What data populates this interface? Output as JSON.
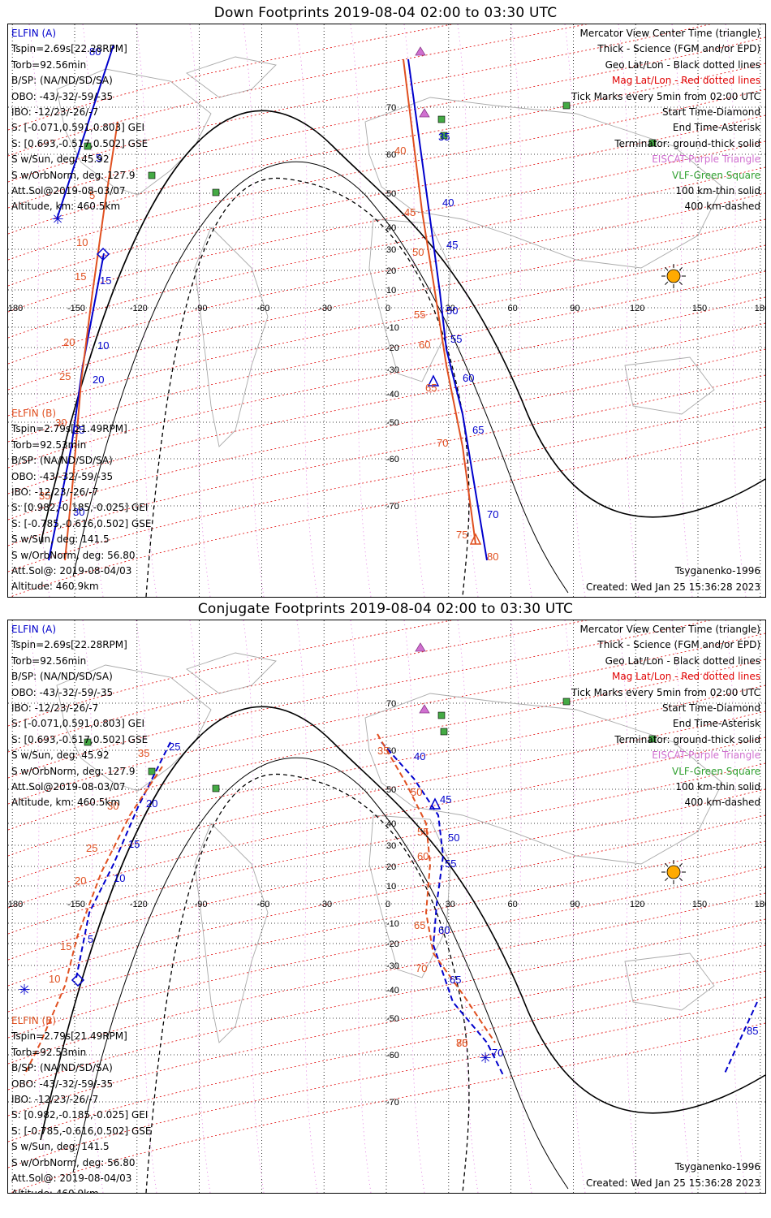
{
  "panels": [
    {
      "id": "down",
      "title": "Down Footprints 2019-08-04 02:00 to 03:30 UTC",
      "elfin_a": {
        "label": "ELFIN (A)",
        "lines": [
          "Tspin=2.69s[22.28RPM]",
          "Torb=92.56min",
          "B/SP: (NA/ND/SD/SA)",
          "OBO: -43/-32/-59/-35",
          "IBO: -12/23/-26/-7",
          "S: [-0.071,0.591,0.803] GEI",
          "S: [0.693,-0.517,0.502] GSE",
          "S w/Sun, deg: 45.92",
          "S w/OrbNorm, deg: 127.9",
          "Att.Sol@2019-08-03/07",
          "Altitude, km: 460.5km"
        ]
      },
      "elfin_b": {
        "label": "ELFIN (B)",
        "lines": [
          "Tspin=2.79s[21.49RPM]",
          "Torb=92.53min",
          "B/SP: (NA/ND/SD/SA)",
          "OBO: -43/-32/-59/-35",
          "IBO: -12/23/-26/-7",
          "S: [0.982,-0.185,-0.025] GEI",
          "S: [-0.785,-0.616,0.502] GSE",
          "S w/Sun, deg: 141.5",
          "S w/OrbNorm, deg: 56.80",
          "Att.Sol@: 2019-08-04/03",
          "Altitude: 460.9km"
        ]
      },
      "legend": [
        "Mercator View Center Time (triangle)",
        "Thick - Science (FGM and/or EPD)",
        "Geo Lat/Lon - Black dotted lines",
        "Mag Lat/Lon - Red dotted lines",
        "Tick Marks every 5min from 02:00 UTC",
        "Start Time-Diamond",
        "End Time-Asterisk",
        "Terminator: ground-thick solid",
        "EISCAT-Purple Triangle",
        "VLF-Green Square",
        "100 km-thin solid",
        "400 km-dashed"
      ],
      "model": "Tsyganenko-1996",
      "created": "Created: Wed Jan 25 15:36:28 2023",
      "lon_ticks": [
        "-180",
        "-150",
        "-120",
        "-90",
        "-60",
        "-30",
        "0",
        "30",
        "60",
        "90",
        "120",
        "150",
        "180"
      ],
      "lat_ticks": [
        "70",
        "60",
        "50",
        "40",
        "30",
        "20",
        "10",
        "-10",
        "-20",
        "-30",
        "-40",
        "-50",
        "-60",
        "-70"
      ],
      "a_ticks": [
        "80",
        "5",
        "10",
        "15",
        "20",
        "25",
        "30",
        "35",
        "40",
        "45",
        "50",
        "55",
        "60",
        "65",
        "70"
      ],
      "b_ticks": [
        "5",
        "10",
        "15",
        "20",
        "25",
        "30",
        "35",
        "40",
        "45",
        "50",
        "55",
        "60",
        "65",
        "70",
        "75",
        "80"
      ]
    },
    {
      "id": "conjugate",
      "title": "Conjugate Footprints 2019-08-04 02:00 to 03:30 UTC",
      "elfin_a": {
        "label": "ELFIN (A)",
        "lines": [
          "Tspin=2.69s[22.28RPM]",
          "Torb=92.56min",
          "B/SP: (NA/ND/SD/SA)",
          "OBO: -43/-32/-59/-35",
          "IBO: -12/23/-26/-7",
          "S: [-0.071,0.591,0.803] GEI",
          "S: [0.693,-0.517,0.502] GSE",
          "S w/Sun, deg: 45.92",
          "S w/OrbNorm, deg: 127.9",
          "Att.Sol@2019-08-03/07",
          "Altitude, km: 460.5km"
        ]
      },
      "elfin_b": {
        "label": "ELFIN (B)",
        "lines": [
          "Tspin=2.79s[21.49RPM]",
          "Torb=92.53min",
          "B/SP: (NA/ND/SD/SA)",
          "OBO: -43/-32/-59/-35",
          "IBO: -12/23/-26/-7",
          "S: [0.982,-0.185,-0.025] GEI",
          "S: [-0.785,-0.616,0.502] GSE",
          "S w/Sun, deg: 141.5",
          "S w/OrbNorm, deg: 56.80",
          "Att.Sol@: 2019-08-04/03",
          "Altitude: 460.9km"
        ]
      },
      "legend": [
        "Mercator View Center Time (triangle)",
        "Thick - Science (FGM and/or EPD)",
        "Geo Lat/Lon - Black dotted lines",
        "Mag Lat/Lon - Red dotted lines",
        "Tick Marks every 5min from 02:00 UTC",
        "Start Time-Diamond",
        "End Time-Asterisk",
        "Terminator: ground-thick solid",
        "EISCAT-Purple Triangle",
        "VLF-Green Square",
        "100 km-thin solid",
        "400 km-dashed"
      ],
      "model": "Tsyganenko-1996",
      "created": "Created: Wed Jan 25 15:36:28 2023",
      "lon_ticks": [
        "-180",
        "-150",
        "-120",
        "-90",
        "-60",
        "-30",
        "0",
        "30",
        "60",
        "90",
        "120",
        "150",
        "180"
      ],
      "lat_ticks": [
        "70",
        "60",
        "50",
        "40",
        "30",
        "20",
        "10",
        "-10",
        "-20",
        "-30",
        "-40",
        "-50",
        "-60",
        "-70"
      ],
      "a_ticks": [
        "5",
        "10",
        "15",
        "20",
        "25",
        "40",
        "45",
        "50",
        "55",
        "60",
        "65",
        "70",
        "85"
      ],
      "b_ticks": [
        "10",
        "15",
        "20",
        "25",
        "30",
        "35",
        "50",
        "55",
        "60",
        "65",
        "70",
        "75",
        "80"
      ]
    }
  ],
  "colors": {
    "elfin_a": "#0000cc",
    "elfin_b": "#e05020",
    "mag_grid": "#e00000",
    "eiscat": "#d070d0",
    "vlf": "#30a030",
    "sun": "#ffaa00"
  },
  "icons": {
    "start": "diamond-icon",
    "end": "asterisk-icon",
    "eiscat": "triangle-icon",
    "vlf": "square-icon",
    "sun": "sun-icon"
  }
}
